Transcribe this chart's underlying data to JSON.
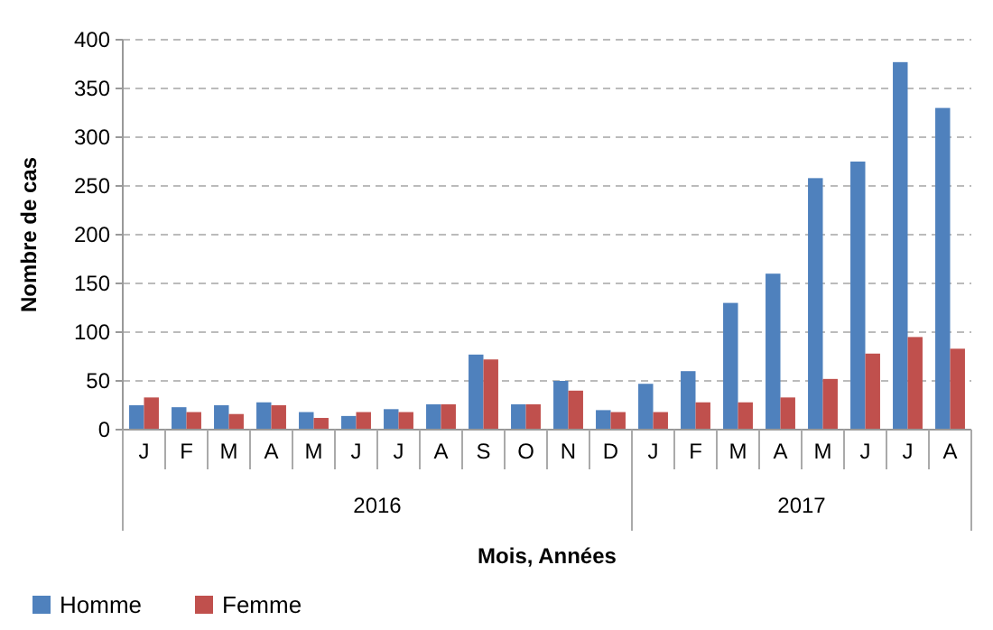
{
  "chart_data": {
    "type": "bar",
    "xlabel": "Mois, Années",
    "ylabel": "Nombre de cas",
    "categories": [
      "J",
      "F",
      "M",
      "A",
      "M",
      "J",
      "J",
      "A",
      "S",
      "O",
      "N",
      "D",
      "J",
      "F",
      "M",
      "A",
      "M",
      "J",
      "J",
      "A"
    ],
    "series": [
      {
        "name": "Homme",
        "color": "#4f81bd",
        "values": [
          25,
          23,
          25,
          28,
          18,
          14,
          21,
          26,
          77,
          26,
          50,
          20,
          47,
          60,
          130,
          160,
          258,
          275,
          377,
          330
        ]
      },
      {
        "name": "Femme",
        "color": "#c0504d",
        "values": [
          33,
          18,
          16,
          25,
          12,
          18,
          18,
          26,
          72,
          26,
          40,
          18,
          18,
          28,
          28,
          33,
          52,
          78,
          95,
          83
        ]
      }
    ],
    "ylim": [
      0,
      400
    ],
    "yticks": [
      0,
      50,
      100,
      150,
      200,
      250,
      300,
      350,
      400
    ],
    "grid": "y",
    "legend": "bottom left",
    "annotations": [
      "2016",
      "2017"
    ]
  }
}
